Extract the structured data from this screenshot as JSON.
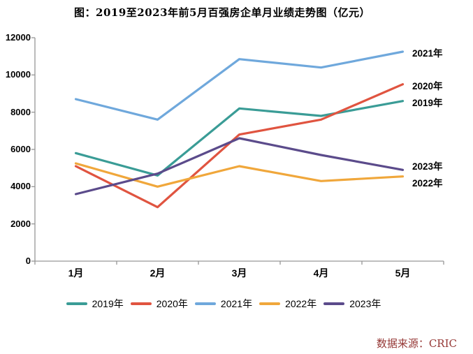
{
  "title": "图：2019至2023年前5月百强房企单月业绩走势图（亿元）",
  "source_note": "数据来源：CRIC",
  "chart_data": {
    "type": "line",
    "categories": [
      "1月",
      "2月",
      "3月",
      "4月",
      "5月"
    ],
    "series": [
      {
        "name": "2019年",
        "color": "#3A9C96",
        "values": [
          5800,
          4600,
          8200,
          7800,
          8600
        ]
      },
      {
        "name": "2020年",
        "color": "#E05440",
        "values": [
          5100,
          2900,
          6800,
          7600,
          9500
        ]
      },
      {
        "name": "2021年",
        "color": "#6FA8DC",
        "values": [
          8700,
          7600,
          10850,
          10400,
          11250
        ]
      },
      {
        "name": "2022年",
        "color": "#F0A73B",
        "values": [
          5250,
          4000,
          5100,
          4300,
          4550
        ]
      },
      {
        "name": "2023年",
        "color": "#5B4B8B",
        "values": [
          3600,
          4700,
          6600,
          5700,
          4900
        ]
      }
    ],
    "ylabel_ticks": [
      0,
      2000,
      4000,
      6000,
      8000,
      10000,
      12000
    ],
    "ylim": [
      0,
      12000
    ],
    "xlabel": "",
    "ylabel": "",
    "grid": false,
    "legend_position": "bottom",
    "annotations_right": [
      "2021年",
      "2020年",
      "2019年",
      "2023年",
      "2022年"
    ],
    "axis_color": "#969696"
  }
}
